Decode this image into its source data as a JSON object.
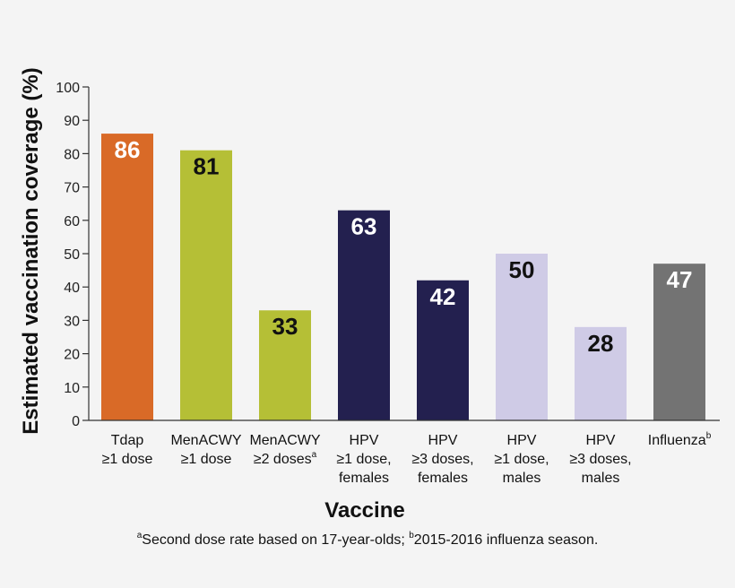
{
  "chart_data": {
    "type": "bar",
    "ylabel": "Estimated vaccination coverage (%)",
    "xlabel": "Vaccine",
    "ylim": [
      0,
      100
    ],
    "yticks": [
      0,
      10,
      20,
      30,
      40,
      50,
      60,
      70,
      80,
      90,
      100
    ],
    "categories": [
      {
        "lines": [
          "Tdap",
          "≥1 dose"
        ],
        "sup": ""
      },
      {
        "lines": [
          "MenACWY",
          "≥1 dose"
        ],
        "sup": ""
      },
      {
        "lines": [
          "MenACWY",
          "≥2 doses"
        ],
        "sup": "a"
      },
      {
        "lines": [
          "HPV",
          "≥1 dose,",
          "females"
        ],
        "sup": ""
      },
      {
        "lines": [
          "HPV",
          "≥3 doses,",
          "females"
        ],
        "sup": ""
      },
      {
        "lines": [
          "HPV",
          "≥1 dose,",
          "males"
        ],
        "sup": ""
      },
      {
        "lines": [
          "HPV",
          "≥3 doses,",
          "males"
        ],
        "sup": ""
      },
      {
        "lines": [
          "Influenza"
        ],
        "sup": "b"
      }
    ],
    "values": [
      86,
      81,
      33,
      63,
      42,
      50,
      28,
      47
    ],
    "colors": [
      "#d96a27",
      "#b5bf36",
      "#b5bf36",
      "#23204f",
      "#23204f",
      "#cfcbe6",
      "#cfcbe6",
      "#737373"
    ],
    "label_colors": [
      "#ffffff",
      "#111111",
      "#111111",
      "#ffffff",
      "#ffffff",
      "#111111",
      "#111111",
      "#ffffff"
    ]
  },
  "footnote": {
    "a_mark": "a",
    "a_text": "Second dose rate based on 17-year-olds; ",
    "b_mark": "b",
    "b_text": "2015-2016 influenza season."
  }
}
